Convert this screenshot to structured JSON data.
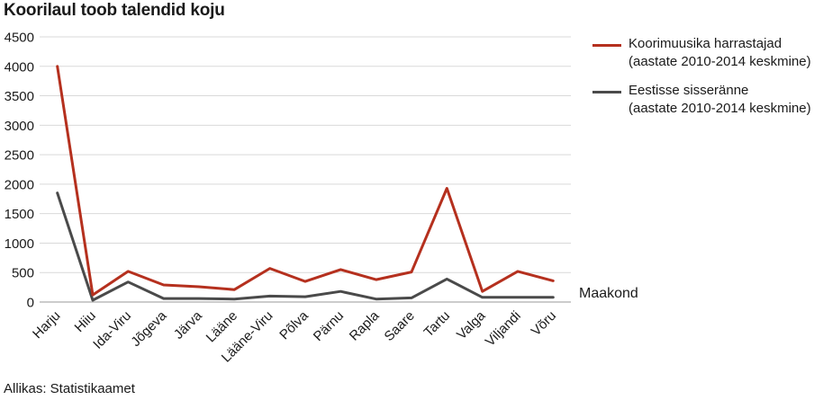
{
  "chart_data": {
    "type": "line",
    "title": "Koorilaul toob talendid koju",
    "source": "Allikas: Statistikaamet",
    "xlabel": "Maakond",
    "ylabel": "",
    "ylim": [
      0,
      4500
    ],
    "yticks": [
      0,
      500,
      1000,
      1500,
      2000,
      2500,
      3000,
      3500,
      4000,
      4500
    ],
    "grid": true,
    "legend_position": "top-right",
    "categories": [
      "Harju",
      "Hiiu",
      "Ida-Viru",
      "Jõgeva",
      "Järva",
      "Lääne",
      "Lääne-Viru",
      "Põlva",
      "Pärnu",
      "Rapla",
      "Saare",
      "Tartu",
      "Valga",
      "Viljandi",
      "Võru"
    ],
    "series": [
      {
        "name_line1": "Koorimuusika harrastajad",
        "name_line2": "(aastate 2010-2014 keskmine)",
        "color": "#b5301e",
        "values": [
          4000,
          120,
          520,
          290,
          260,
          210,
          570,
          350,
          550,
          380,
          510,
          1930,
          180,
          520,
          360
        ]
      },
      {
        "name_line1": "Eestisse sisseränne",
        "name_line2": "(aastate 2010-2014 keskmine)",
        "color": "#4a4a4a",
        "values": [
          1850,
          30,
          340,
          60,
          60,
          50,
          100,
          90,
          180,
          50,
          70,
          390,
          80,
          80,
          80
        ]
      }
    ]
  }
}
